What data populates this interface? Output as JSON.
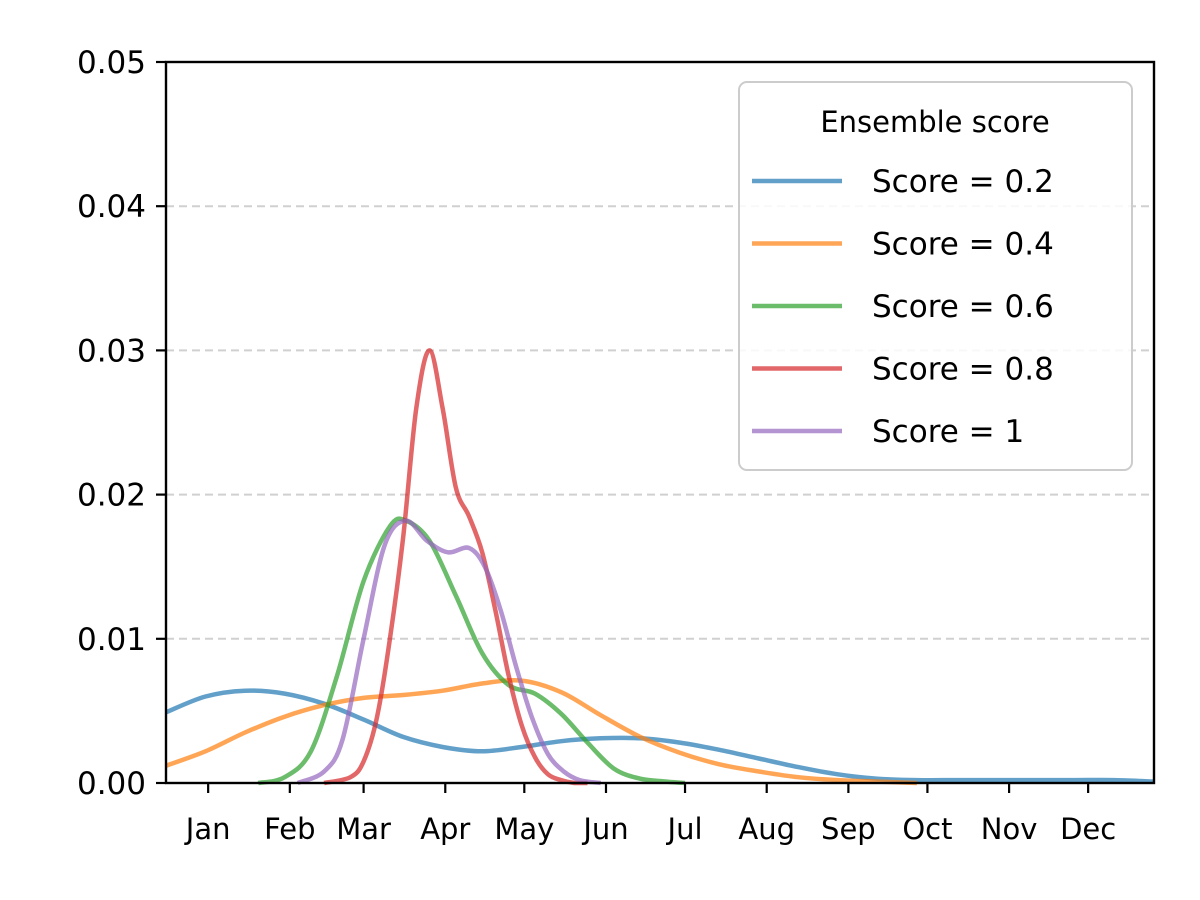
{
  "chart_data": {
    "type": "line",
    "title": "",
    "xlabel": "",
    "ylabel": "",
    "x_unit": "day of year",
    "xlim": [
      -15,
      360
    ],
    "ylim": [
      0,
      0.05
    ],
    "yticks": [
      0.0,
      0.01,
      0.02,
      0.03,
      0.04,
      0.05
    ],
    "ytick_labels": [
      "0.00",
      "0.01",
      "0.02",
      "0.03",
      "0.04",
      "0.05"
    ],
    "xticks": [
      1,
      32,
      60,
      91,
      121,
      152,
      182,
      213,
      244,
      274,
      305,
      335
    ],
    "xtick_labels": [
      "Jan",
      "Feb",
      "Mar",
      "Apr",
      "May",
      "Jun",
      "Jul",
      "Aug",
      "Sep",
      "Oct",
      "Nov",
      "Dec"
    ],
    "grid": "horizontal dashed",
    "legend": {
      "title": "Ensemble score",
      "placement": "top-right"
    },
    "series": [
      {
        "name": "Score = 0.2",
        "color": "#1f77b4",
        "x": [
          -15,
          0,
          15,
          30,
          45,
          60,
          75,
          90,
          105,
          120,
          135,
          150,
          165,
          180,
          195,
          210,
          225,
          240,
          255,
          270,
          285,
          300,
          315,
          330,
          345,
          360
        ],
        "y": [
          0.0049,
          0.006,
          0.0064,
          0.0062,
          0.0055,
          0.0044,
          0.0032,
          0.0025,
          0.0022,
          0.0025,
          0.0029,
          0.0031,
          0.0031,
          0.0028,
          0.0023,
          0.0017,
          0.0011,
          0.0006,
          0.0003,
          0.0002,
          0.0002,
          0.0002,
          0.0002,
          0.0002,
          0.0002,
          0.0001
        ]
      },
      {
        "name": "Score = 0.4",
        "color": "#ff7f0e",
        "x": [
          -15,
          0,
          15,
          30,
          45,
          60,
          75,
          90,
          105,
          120,
          135,
          150,
          165,
          180,
          195,
          210,
          225,
          240,
          255,
          270
        ],
        "y": [
          0.0012,
          0.0022,
          0.0035,
          0.0046,
          0.0054,
          0.0059,
          0.0061,
          0.0064,
          0.0069,
          0.0071,
          0.0063,
          0.0047,
          0.0032,
          0.0021,
          0.0013,
          0.0008,
          0.0004,
          0.0002,
          0.0001,
          0.0
        ]
      },
      {
        "name": "Score = 0.6",
        "color": "#2ca02c",
        "x": [
          20,
          30,
          40,
          50,
          60,
          70,
          76,
          85,
          95,
          105,
          115,
          125,
          135,
          145,
          155,
          165,
          175,
          182
        ],
        "y": [
          0.0,
          0.0004,
          0.0022,
          0.0075,
          0.014,
          0.0178,
          0.0182,
          0.0168,
          0.013,
          0.009,
          0.0068,
          0.0062,
          0.0048,
          0.0028,
          0.001,
          0.0003,
          0.0001,
          0.0
        ]
      },
      {
        "name": "Score = 0.8",
        "color": "#d62728",
        "x": [
          45,
          55,
          60,
          65,
          70,
          75,
          80,
          85,
          90,
          95,
          100,
          105,
          110,
          115,
          120,
          125,
          130,
          135,
          140,
          145
        ],
        "y": [
          0.0,
          0.0004,
          0.0015,
          0.0045,
          0.01,
          0.017,
          0.026,
          0.03,
          0.026,
          0.0205,
          0.0185,
          0.016,
          0.012,
          0.0075,
          0.004,
          0.0018,
          0.0006,
          0.0002,
          0.0,
          0.0
        ]
      },
      {
        "name": "Score = 1",
        "color": "#9467bd",
        "x": [
          35,
          45,
          52,
          60,
          68,
          76,
          84,
          92,
          100,
          106,
          112,
          118,
          124,
          130,
          136,
          142,
          150
        ],
        "y": [
          0.0,
          0.0008,
          0.003,
          0.01,
          0.0165,
          0.0182,
          0.0168,
          0.016,
          0.0163,
          0.015,
          0.012,
          0.008,
          0.0045,
          0.002,
          0.0008,
          0.0002,
          0.0
        ]
      }
    ]
  }
}
